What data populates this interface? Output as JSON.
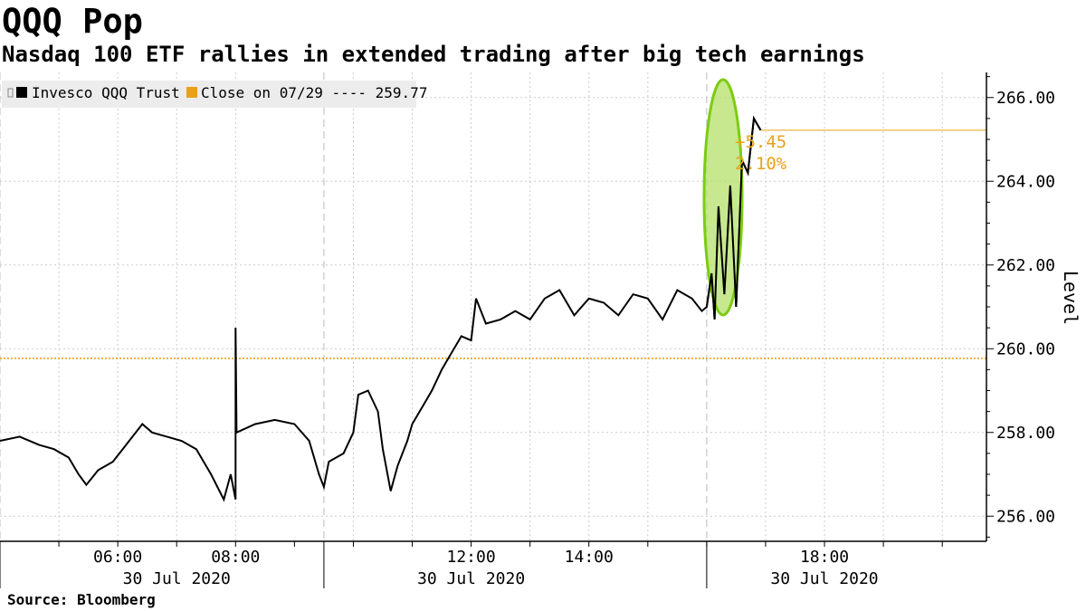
{
  "header": {
    "title": "QQQ Pop",
    "subtitle": "Nasdaq 100 ETF rallies in extended trading after big tech earnings"
  },
  "footer": {
    "source": "Source: Bloomberg"
  },
  "colors": {
    "series": "#000000",
    "reference": "#e8a21a",
    "annotation": "#e8a21a",
    "highlight_fill": "#b4e06a",
    "highlight_stroke": "#7ccc10",
    "grid": "#cccccc",
    "legend_bg": "#ececec"
  },
  "chart_data": {
    "type": "line",
    "title": "QQQ Pop",
    "subtitle": "Nasdaq 100 ETF rallies in extended trading after big tech earnings",
    "xlabel": "",
    "ylabel": "Level",
    "ylim": [
      255.4,
      266.6
    ],
    "xlim": [
      "04:00",
      "20:45"
    ],
    "y_ticks": [
      256,
      258,
      260,
      262,
      264,
      266
    ],
    "y_tick_labels": [
      "256.00",
      "258.00",
      "260.00",
      "262.00",
      "264.00",
      "266.00"
    ],
    "x_ticks": [
      "06:00",
      "08:00",
      "12:00",
      "14:00",
      "18:00"
    ],
    "x_date_labels": [
      {
        "time": "07:00",
        "label": "30 Jul 2020"
      },
      {
        "time": "12:00",
        "label": "30 Jul 2020"
      },
      {
        "time": "18:00",
        "label": "30 Jul 2020"
      }
    ],
    "grid": true,
    "axis_position": "right",
    "legend": {
      "position": "top-left",
      "entries": [
        {
          "label": "Invesco QQQ Trust"
        },
        {
          "label": "Close on 07/29 ---- 259.77"
        }
      ]
    },
    "reference_line": {
      "label": "Close on 07/29",
      "value": 259.77
    },
    "annotations": [
      "+5.45",
      "2.10%"
    ],
    "last_value": 265.22,
    "series": [
      {
        "name": "Invesco QQQ Trust",
        "points": [
          [
            "04:00",
            257.8
          ],
          [
            "04:20",
            257.9
          ],
          [
            "04:40",
            257.7
          ],
          [
            "04:55",
            257.6
          ],
          [
            "05:10",
            257.4
          ],
          [
            "05:20",
            257.0
          ],
          [
            "05:28",
            256.75
          ],
          [
            "05:40",
            257.1
          ],
          [
            "05:55",
            257.3
          ],
          [
            "06:05",
            257.6
          ],
          [
            "06:15",
            257.9
          ],
          [
            "06:25",
            258.2
          ],
          [
            "06:35",
            258.0
          ],
          [
            "06:50",
            257.9
          ],
          [
            "07:05",
            257.8
          ],
          [
            "07:20",
            257.6
          ],
          [
            "07:35",
            257.0
          ],
          [
            "07:48",
            256.4
          ],
          [
            "07:55",
            257.0
          ],
          [
            "08:00",
            256.4
          ],
          [
            "08:00",
            260.5
          ],
          [
            "08:01",
            258.0
          ],
          [
            "08:20",
            258.2
          ],
          [
            "08:40",
            258.3
          ],
          [
            "09:00",
            258.2
          ],
          [
            "09:15",
            257.8
          ],
          [
            "09:25",
            257.0
          ],
          [
            "09:30",
            256.7
          ],
          [
            "09:35",
            257.3
          ],
          [
            "09:50",
            257.5
          ],
          [
            "10:00",
            258.0
          ],
          [
            "10:05",
            258.9
          ],
          [
            "10:15",
            259.0
          ],
          [
            "10:25",
            258.5
          ],
          [
            "10:30",
            257.6
          ],
          [
            "10:38",
            256.6
          ],
          [
            "10:45",
            257.2
          ],
          [
            "10:55",
            257.8
          ],
          [
            "11:00",
            258.2
          ],
          [
            "11:10",
            258.6
          ],
          [
            "11:20",
            259.0
          ],
          [
            "11:30",
            259.5
          ],
          [
            "11:40",
            259.9
          ],
          [
            "11:50",
            260.3
          ],
          [
            "12:00",
            260.2
          ],
          [
            "12:05",
            261.2
          ],
          [
            "12:15",
            260.6
          ],
          [
            "12:30",
            260.7
          ],
          [
            "12:45",
            260.9
          ],
          [
            "13:00",
            260.7
          ],
          [
            "13:15",
            261.2
          ],
          [
            "13:30",
            261.4
          ],
          [
            "13:45",
            260.8
          ],
          [
            "14:00",
            261.2
          ],
          [
            "14:15",
            261.1
          ],
          [
            "14:30",
            260.8
          ],
          [
            "14:45",
            261.3
          ],
          [
            "15:00",
            261.2
          ],
          [
            "15:15",
            260.7
          ],
          [
            "15:30",
            261.4
          ],
          [
            "15:45",
            261.2
          ],
          [
            "15:55",
            260.9
          ],
          [
            "16:00",
            261.0
          ],
          [
            "16:05",
            261.8
          ],
          [
            "16:08",
            260.7
          ],
          [
            "16:12",
            263.4
          ],
          [
            "16:18",
            261.3
          ],
          [
            "16:24",
            263.9
          ],
          [
            "16:30",
            261.0
          ],
          [
            "16:36",
            264.5
          ],
          [
            "16:42",
            264.2
          ],
          [
            "16:48",
            265.5
          ],
          [
            "16:55",
            265.22
          ]
        ]
      }
    ]
  }
}
